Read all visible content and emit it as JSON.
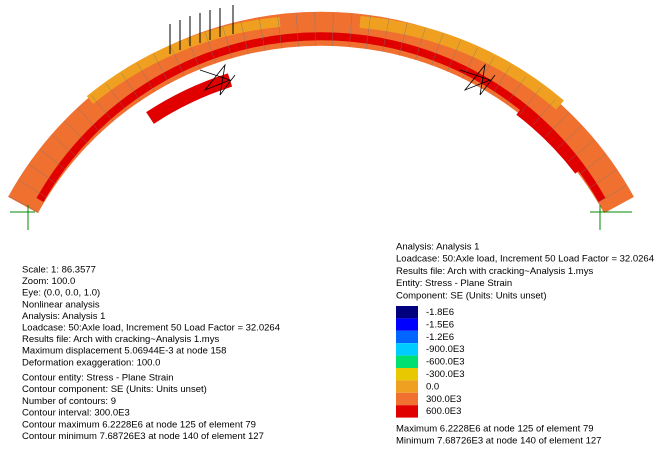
{
  "left_info": {
    "lines": [
      "Scale: 1: 86.3577",
      "Zoom: 100.0",
      "Eye: (0.0, 0.0, 1.0)",
      "Nonlinear analysis",
      "Analysis: Analysis 1",
      "Loadcase: 50:Axle load, Increment 50 Load Factor = 32.0264",
      "Results file: Arch with cracking~Analysis 1.mys",
      "Maximum displacement 5.06944E-3 at node 158",
      "Deformation exaggeration: 100.0"
    ],
    "contour_lines": [
      "Contour entity: Stress - Plane Strain",
      "Contour component: SE (Units: Units unset)",
      "Number of contours: 9",
      "Contour interval: 300.0E3",
      "Contour maximum 6.2228E6 at node 125 of element 79",
      "Contour minimum 7.68726E3 at node 140 of element 127"
    ]
  },
  "right_info": {
    "header": [
      "Analysis: Analysis 1",
      "Loadcase: 50:Axle load, Increment 50 Load Factor = 32.0264",
      "Results file: Arch with cracking~Analysis 1.mys",
      "Entity: Stress - Plane Strain",
      "Component: SE (Units: Units unset)"
    ],
    "legend": [
      {
        "label": "-1.8E6",
        "color": "#00007f"
      },
      {
        "label": "-1.5E6",
        "color": "#0000ff"
      },
      {
        "label": "-1.2E6",
        "color": "#0066ff"
      },
      {
        "label": "-900.0E3",
        "color": "#00ccff"
      },
      {
        "label": "-600.0E3",
        "color": "#00e070"
      },
      {
        "label": "-300.0E3",
        "color": "#e8c800"
      },
      {
        "label": "0.0",
        "color": "#f0a020"
      },
      {
        "label": "300.0E3",
        "color": "#f07030"
      },
      {
        "label": "600.0E3",
        "color": "#e00000"
      }
    ],
    "footer": [
      "Maximum 6.2228E6 at node 125 of element 79",
      "Minimum 7.68726E3 at node 140 of element 127"
    ]
  }
}
